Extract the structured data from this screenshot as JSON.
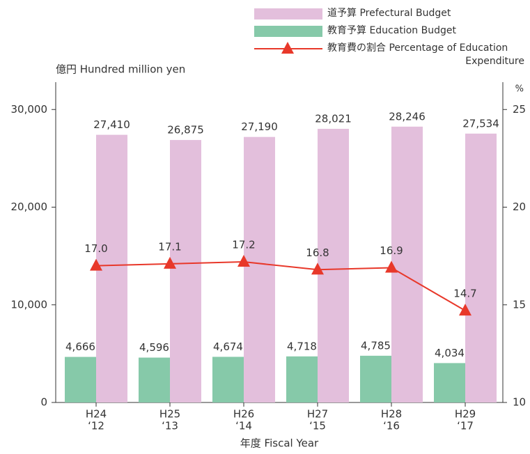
{
  "chart_data": {
    "type": "bar-line",
    "y_label": "億円 Hundred million yen",
    "y2_label": "%",
    "x_label": "年度 Fiscal Year",
    "categories": [
      [
        "H24",
        "‘12"
      ],
      [
        "H25",
        "‘13"
      ],
      [
        "H26",
        "‘14"
      ],
      [
        "H27",
        "‘15"
      ],
      [
        "H28",
        "‘16"
      ],
      [
        "H29",
        "‘17"
      ]
    ],
    "series": [
      {
        "name": "道予算 Prefectural Budget",
        "color": "#e3bfdc",
        "values": [
          27410,
          26875,
          27190,
          28021,
          28246,
          27534
        ],
        "value_labels": [
          "27,410",
          "26,875",
          "27,190",
          "28,021",
          "28,246",
          "27,534"
        ]
      },
      {
        "name": "教育予算 Education Budget",
        "color": "#86c9a9",
        "values": [
          4666,
          4596,
          4674,
          4718,
          4785,
          4034
        ],
        "value_labels": [
          "4,666",
          "4,596",
          "4,674",
          "4,718",
          "4,785",
          "4,034"
        ]
      },
      {
        "name": "教育費の割合 Percentage of Education Expenditure",
        "color": "#e8382a",
        "axis": "y2",
        "values": [
          17.0,
          17.1,
          17.2,
          16.8,
          16.9,
          14.7
        ],
        "value_labels": [
          "17.0",
          "17.1",
          "17.2",
          "16.8",
          "16.9",
          "14.7"
        ]
      }
    ],
    "ylim": [
      0,
      32800
    ],
    "yticks": [
      0,
      {
        "value": 10000,
        "label": "10,000"
      },
      {
        "value": 20000,
        "label": "20,000"
      },
      {
        "value": 30000,
        "label": "30,000"
      }
    ],
    "y2lim": [
      10,
      26.4
    ],
    "y2ticks": [
      10,
      15,
      20,
      25
    ]
  }
}
